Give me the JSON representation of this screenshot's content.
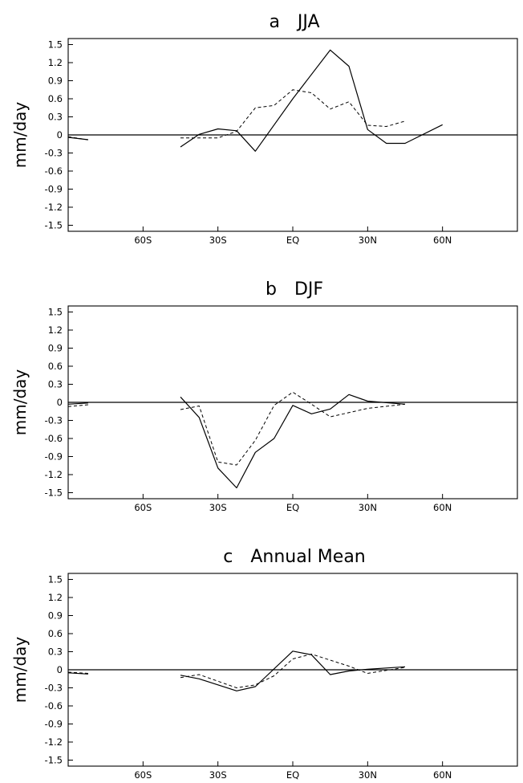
{
  "chart_data": [
    {
      "type": "line",
      "panel_letter": "a",
      "title": "JJA",
      "ylabel": "mm/day",
      "xlabel": "",
      "xlim": [
        -90,
        90
      ],
      "ylim": [
        -1.6,
        1.6
      ],
      "x_ticks": [
        {
          "value": -60,
          "label": "60S"
        },
        {
          "value": -30,
          "label": "30S"
        },
        {
          "value": 0,
          "label": "EQ"
        },
        {
          "value": 30,
          "label": "30N"
        },
        {
          "value": 60,
          "label": "60N"
        }
      ],
      "y_ticks": [
        {
          "value": 1.5,
          "label": "1.5"
        },
        {
          "value": 1.2,
          "label": "1.2"
        },
        {
          "value": 0.9,
          "label": "0.9"
        },
        {
          "value": 0.6,
          "label": "0.6"
        },
        {
          "value": 0.3,
          "label": "0.3"
        },
        {
          "value": 0,
          "label": "0"
        },
        {
          "value": -0.3,
          "label": "-0.3"
        },
        {
          "value": -0.6,
          "label": "-0.6"
        },
        {
          "value": -0.9,
          "label": "-0.9"
        },
        {
          "value": -1.2,
          "label": "-1.2"
        },
        {
          "value": -1.5,
          "label": "-1.5"
        }
      ],
      "zero_line": true,
      "legend": "none",
      "series": [
        {
          "style": "solid",
          "segments": [
            [
              [
                -90,
                -0.04
              ],
              [
                -82,
                -0.08
              ]
            ],
            [
              [
                -45,
                -0.2
              ],
              [
                -37.5,
                0.01
              ],
              [
                -30,
                0.1
              ],
              [
                -22.5,
                0.07
              ],
              [
                -15,
                -0.27
              ],
              [
                0,
                0.6
              ],
              [
                15,
                1.41
              ],
              [
                22.5,
                1.14
              ],
              [
                30,
                0.09
              ],
              [
                37.5,
                -0.14
              ],
              [
                45,
                -0.14
              ],
              [
                60,
                0.17
              ]
            ]
          ]
        },
        {
          "style": "dashed",
          "segments": [
            [
              [
                -90,
                -0.03
              ],
              [
                -82,
                -0.08
              ]
            ],
            [
              [
                -45,
                -0.05
              ],
              [
                -30,
                -0.05
              ],
              [
                -22.5,
                0.06
              ],
              [
                -15,
                0.45
              ],
              [
                -7.5,
                0.49
              ],
              [
                0,
                0.75
              ],
              [
                7.5,
                0.7
              ],
              [
                15,
                0.43
              ],
              [
                22.5,
                0.55
              ],
              [
                30,
                0.16
              ],
              [
                37.5,
                0.14
              ],
              [
                45,
                0.23
              ]
            ]
          ]
        }
      ]
    },
    {
      "type": "line",
      "panel_letter": "b",
      "title": "DJF",
      "ylabel": "mm/day",
      "xlabel": "",
      "xlim": [
        -90,
        90
      ],
      "ylim": [
        -1.6,
        1.6
      ],
      "x_ticks": [
        {
          "value": -60,
          "label": "60S"
        },
        {
          "value": -30,
          "label": "30S"
        },
        {
          "value": 0,
          "label": "EQ"
        },
        {
          "value": 30,
          "label": "30N"
        },
        {
          "value": 60,
          "label": "60N"
        }
      ],
      "y_ticks": [
        {
          "value": 1.5,
          "label": "1.5"
        },
        {
          "value": 1.2,
          "label": "1.2"
        },
        {
          "value": 0.9,
          "label": "0.9"
        },
        {
          "value": 0.6,
          "label": "0.6"
        },
        {
          "value": 0.3,
          "label": "0.3"
        },
        {
          "value": 0,
          "label": "0"
        },
        {
          "value": -0.3,
          "label": "-0.3"
        },
        {
          "value": -0.6,
          "label": "-0.6"
        },
        {
          "value": -0.9,
          "label": "-0.9"
        },
        {
          "value": -1.2,
          "label": "-1.2"
        },
        {
          "value": -1.5,
          "label": "-1.5"
        }
      ],
      "zero_line": true,
      "legend": "none",
      "series": [
        {
          "style": "solid",
          "segments": [
            [
              [
                -90,
                -0.03
              ],
              [
                -82,
                -0.01
              ]
            ],
            [
              [
                -45,
                0.09
              ],
              [
                -37.5,
                -0.25
              ],
              [
                -30,
                -1.09
              ],
              [
                -22.5,
                -1.42
              ],
              [
                -15,
                -0.83
              ],
              [
                -7.5,
                -0.6
              ],
              [
                0,
                -0.05
              ],
              [
                7.5,
                -0.19
              ],
              [
                15,
                -0.11
              ],
              [
                22.5,
                0.13
              ],
              [
                30,
                0.02
              ],
              [
                45,
                -0.03
              ]
            ]
          ]
        },
        {
          "style": "dashed",
          "segments": [
            [
              [
                -90,
                -0.07
              ],
              [
                -82,
                -0.04
              ]
            ],
            [
              [
                -45,
                -0.12
              ],
              [
                -37.5,
                -0.06
              ],
              [
                -30,
                -0.99
              ],
              [
                -22.5,
                -1.04
              ],
              [
                -15,
                -0.63
              ],
              [
                -7.5,
                -0.05
              ],
              [
                0,
                0.17
              ],
              [
                7.5,
                -0.03
              ],
              [
                15,
                -0.24
              ],
              [
                22.5,
                -0.17
              ],
              [
                30,
                -0.1
              ],
              [
                45,
                -0.03
              ]
            ]
          ]
        }
      ]
    },
    {
      "type": "line",
      "panel_letter": "c",
      "title": "Annual Mean",
      "ylabel": "mm/day",
      "xlabel": "",
      "xlim": [
        -90,
        90
      ],
      "ylim": [
        -1.6,
        1.6
      ],
      "x_ticks": [
        {
          "value": -60,
          "label": "60S"
        },
        {
          "value": -30,
          "label": "30S"
        },
        {
          "value": 0,
          "label": "EQ"
        },
        {
          "value": 30,
          "label": "30N"
        },
        {
          "value": 60,
          "label": "60N"
        }
      ],
      "y_ticks": [
        {
          "value": 1.5,
          "label": "1.5"
        },
        {
          "value": 1.2,
          "label": "1.2"
        },
        {
          "value": 0.9,
          "label": "0.9"
        },
        {
          "value": 0.6,
          "label": "0.6"
        },
        {
          "value": 0.3,
          "label": "0.3"
        },
        {
          "value": 0,
          "label": "0"
        },
        {
          "value": -0.3,
          "label": "-0.3"
        },
        {
          "value": -0.6,
          "label": "-0.6"
        },
        {
          "value": -0.9,
          "label": "-0.9"
        },
        {
          "value": -1.2,
          "label": "-1.2"
        },
        {
          "value": -1.5,
          "label": "-1.5"
        }
      ],
      "zero_line": true,
      "legend": "none",
      "series": [
        {
          "style": "solid",
          "segments": [
            [
              [
                -90,
                -0.05
              ],
              [
                -82,
                -0.07
              ]
            ],
            [
              [
                -45,
                -0.09
              ],
              [
                -37.5,
                -0.15
              ],
              [
                -30,
                -0.25
              ],
              [
                -22.5,
                -0.35
              ],
              [
                -15,
                -0.28
              ],
              [
                0,
                0.31
              ],
              [
                7.5,
                0.25
              ],
              [
                15,
                -0.08
              ],
              [
                22.5,
                -0.02
              ],
              [
                30,
                0.01
              ],
              [
                45,
                0.05
              ]
            ]
          ]
        },
        {
          "style": "dashed",
          "segments": [
            [
              [
                -90,
                -0.04
              ],
              [
                -82,
                -0.06
              ]
            ],
            [
              [
                -45,
                -0.13
              ],
              [
                -37.5,
                -0.08
              ],
              [
                -22.5,
                -0.3
              ],
              [
                -15,
                -0.25
              ],
              [
                -7.5,
                -0.1
              ],
              [
                0,
                0.18
              ],
              [
                7.5,
                0.26
              ],
              [
                22.5,
                0.06
              ],
              [
                30,
                -0.06
              ],
              [
                45,
                0.04
              ]
            ]
          ]
        }
      ]
    }
  ]
}
